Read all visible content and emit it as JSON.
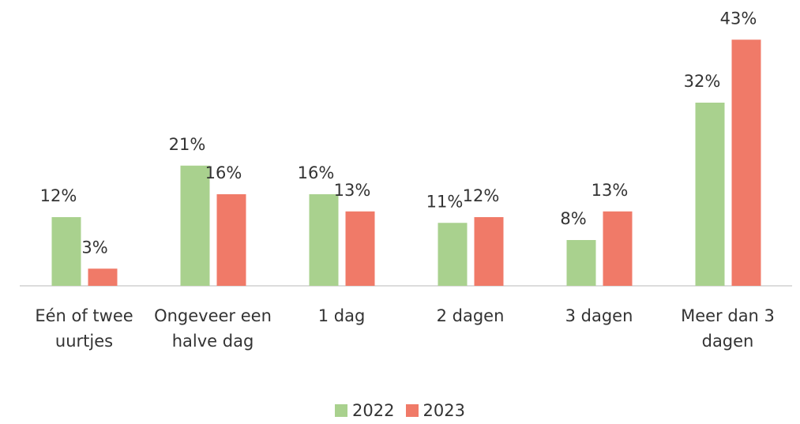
{
  "chart_data": {
    "type": "bar",
    "categories": [
      "Eén of twee uurtjes",
      "Ongeveer een halve dag",
      "1 dag",
      "2 dagen",
      "3 dagen",
      "Meer dan 3 dagen"
    ],
    "series": [
      {
        "name": "2022",
        "color": "#a9d18e",
        "values": [
          12,
          21,
          16,
          11,
          8,
          32
        ],
        "value_labels": [
          "12%",
          "21%",
          "16%",
          "11%",
          "8%",
          "32%"
        ]
      },
      {
        "name": "2023",
        "color": "#f07a68",
        "values": [
          3,
          16,
          13,
          12,
          13,
          43
        ],
        "value_labels": [
          "3%",
          "16%",
          "13%",
          "12%",
          "13%",
          "43%"
        ]
      }
    ],
    "legend": "bottom"
  }
}
